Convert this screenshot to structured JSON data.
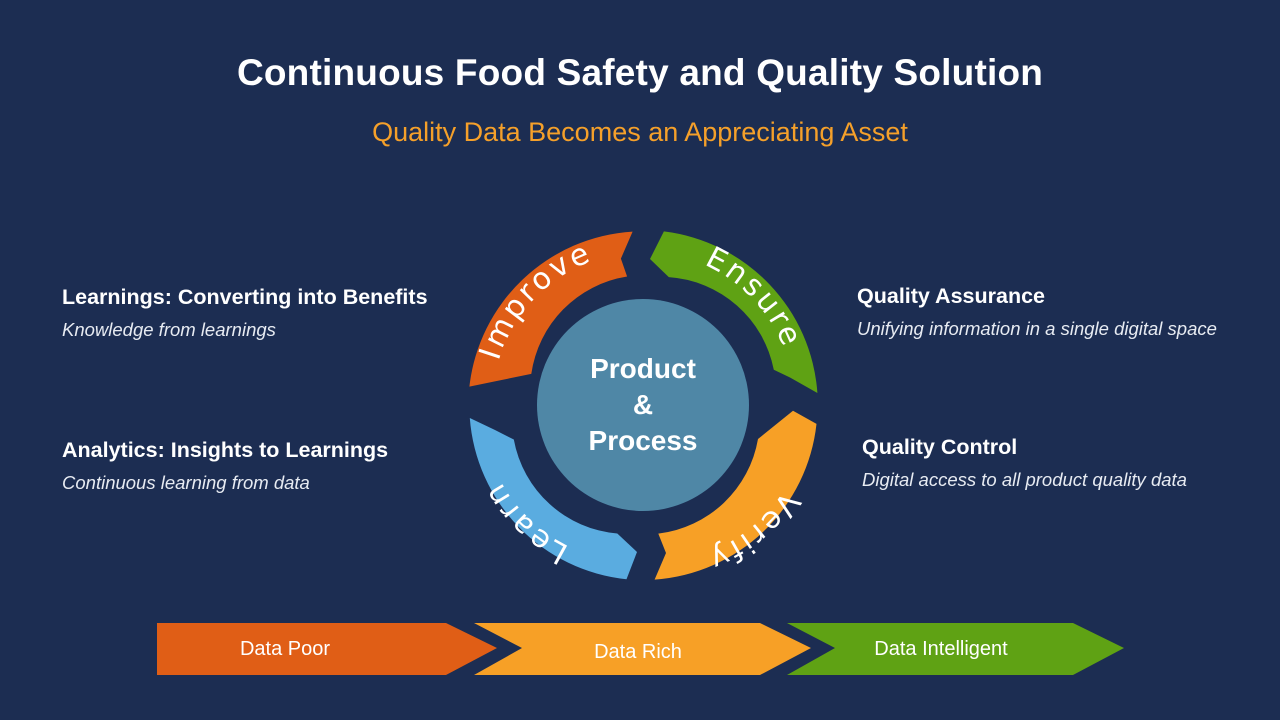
{
  "header": {
    "title": "Continuous Food Safety and Quality Solution",
    "subtitle": "Quality Data Becomes an Appreciating Asset"
  },
  "left_blocks": [
    {
      "heading": "Learnings: Converting into Benefits",
      "description": "Knowledge from learnings"
    },
    {
      "heading": "Analytics: Insights to Learnings",
      "description": "Continuous learning from data"
    }
  ],
  "right_blocks": [
    {
      "heading": "Quality Assurance",
      "description": "Unifying information in a single digital space"
    },
    {
      "heading": "Quality Control",
      "description": "Digital access to all product quality data"
    }
  ],
  "cycle": {
    "center": {
      "line1": "Product",
      "line2": "&",
      "line3": "Process",
      "color": "#4f87a6"
    },
    "segments": [
      {
        "label": "Improve",
        "color": "#e05e16"
      },
      {
        "label": "Ensure",
        "color": "#5fa214"
      },
      {
        "label": "Verify",
        "color": "#f7a026"
      },
      {
        "label": "Learn",
        "color": "#5aace0"
      }
    ]
  },
  "progression": [
    {
      "label": "Data Poor",
      "color": "#e05e16"
    },
    {
      "label": "Data Rich",
      "color": "#f7a026"
    },
    {
      "label": "Data Intelligent",
      "color": "#5fa214"
    }
  ]
}
